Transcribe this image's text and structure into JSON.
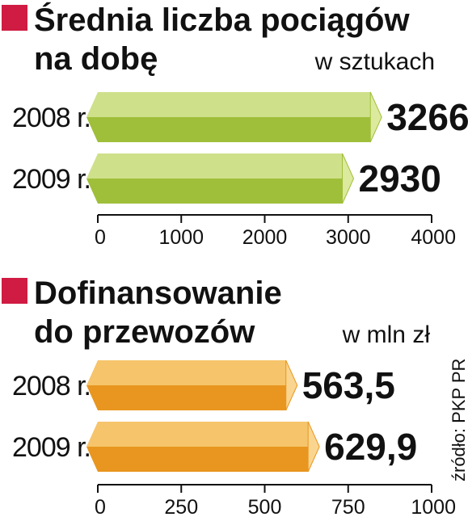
{
  "source": "źródło: PKP PR",
  "chart_data": [
    {
      "type": "bar",
      "orientation": "horizontal",
      "title": "Średnia liczba pociągów na dobę",
      "title_lines": [
        "Średnia liczba pociągów",
        "na dobę"
      ],
      "unit": "w sztukach",
      "categories": [
        "2008 r.",
        "2009 r."
      ],
      "values": [
        3266,
        2930
      ],
      "value_labels": [
        "3266",
        "2930"
      ],
      "xlim": [
        0,
        4000
      ],
      "ticks": [
        "0",
        "1000",
        "2000",
        "3000",
        "4000"
      ],
      "colors": {
        "top": "#cfe08a",
        "bottom": "#9fbf3a",
        "cap": "#dcea9e",
        "marker": "#d01c42"
      },
      "grid": false
    },
    {
      "type": "bar",
      "orientation": "horizontal",
      "title": "Dofinansowanie do przewozów",
      "title_lines": [
        "Dofinansowanie",
        "do przewozów"
      ],
      "unit": "w mln zł",
      "categories": [
        "2008 r.",
        "2009 r."
      ],
      "values": [
        563.5,
        629.9
      ],
      "value_labels": [
        "563,5",
        "629,9"
      ],
      "xlim": [
        0,
        1000
      ],
      "ticks": [
        "0",
        "250",
        "500",
        "750",
        "1000"
      ],
      "colors": {
        "top": "#f6c46a",
        "bottom": "#e8961f",
        "cap": "#fad58f",
        "marker": "#d01c42"
      },
      "grid": false
    }
  ]
}
